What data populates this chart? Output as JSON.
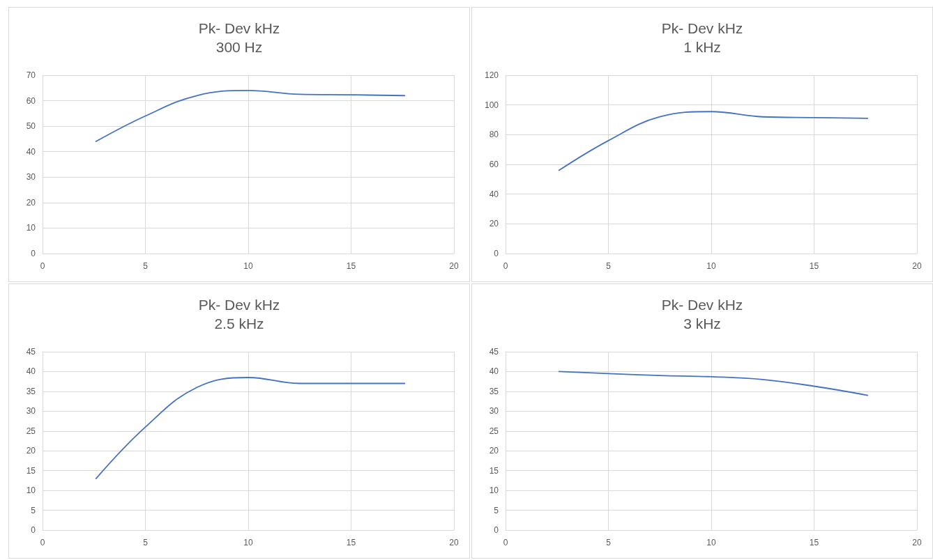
{
  "chart_data": [
    {
      "type": "line",
      "title": "Pk- Dev kHz",
      "subtitle": "300 Hz",
      "x": [
        2.6,
        5,
        7.5,
        10,
        12.5,
        15,
        17.6
      ],
      "series": [
        {
          "color": "#4472c4",
          "values": [
            44,
            54,
            62,
            64,
            62.5,
            62.3,
            62
          ]
        }
      ],
      "xlim": [
        0,
        20
      ],
      "xticks": [
        0,
        5,
        10,
        15,
        20
      ],
      "ylim": [
        0,
        70
      ],
      "yticks": [
        0,
        10,
        20,
        30,
        40,
        50,
        60,
        70
      ],
      "grid": true,
      "marker": "none"
    },
    {
      "type": "line",
      "title": "Pk- Dev kHz",
      "subtitle": "1 kHz",
      "x": [
        2.6,
        5,
        7.5,
        10,
        12.5,
        15,
        17.6
      ],
      "series": [
        {
          "color": "#4472c4",
          "values": [
            56,
            76,
            92,
            95.5,
            92,
            91.5,
            91
          ]
        }
      ],
      "xlim": [
        0,
        20
      ],
      "xticks": [
        0,
        5,
        10,
        15,
        20
      ],
      "ylim": [
        0,
        120
      ],
      "yticks": [
        0,
        20,
        40,
        60,
        80,
        100,
        120
      ],
      "grid": true,
      "marker": "none"
    },
    {
      "type": "line",
      "title": "Pk- Dev kHz",
      "subtitle": "2.5 kHz",
      "x": [
        2.6,
        5,
        7.5,
        10,
        12.5,
        15,
        17.6
      ],
      "series": [
        {
          "color": "#4472c4",
          "values": [
            13,
            26,
            36,
            38.5,
            37,
            37,
            37
          ]
        }
      ],
      "xlim": [
        0,
        20
      ],
      "xticks": [
        0,
        5,
        10,
        15,
        20
      ],
      "ylim": [
        0,
        45
      ],
      "yticks": [
        0,
        5,
        10,
        15,
        20,
        25,
        30,
        35,
        40,
        45
      ],
      "grid": true,
      "marker": "none"
    },
    {
      "type": "line",
      "title": "Pk- Dev kHz",
      "subtitle": "3 kHz",
      "x": [
        2.6,
        5,
        7.5,
        10,
        12.5,
        15,
        17.6
      ],
      "series": [
        {
          "color": "#4472c4",
          "values": [
            40,
            39.5,
            39,
            38.7,
            38,
            36.3,
            34
          ]
        }
      ],
      "xlim": [
        0,
        20
      ],
      "xticks": [
        0,
        5,
        10,
        15,
        20
      ],
      "ylim": [
        0,
        45
      ],
      "yticks": [
        0,
        5,
        10,
        15,
        20,
        25,
        30,
        35,
        40,
        45
      ],
      "grid": true,
      "marker": "none"
    }
  ]
}
